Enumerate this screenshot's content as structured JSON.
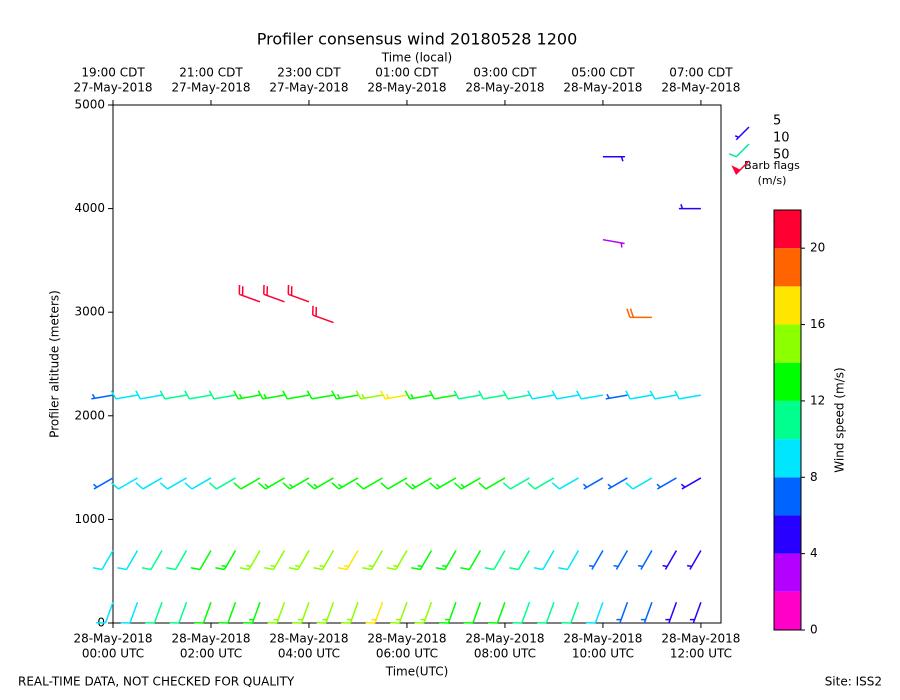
{
  "chart_data": {
    "type": "barbs",
    "title": "Profiler consensus wind 20180528 1200",
    "x2label": "Time (local)",
    "xlabel": "Time(UTC)",
    "ylabel": "Profiler altitude (meters)",
    "xlim": [
      0,
      12.41
    ],
    "ylim": [
      0,
      5000
    ],
    "yticks": [
      0,
      1000,
      2000,
      3000,
      4000,
      5000
    ],
    "xticks": [
      {
        "value": 0,
        "label": [
          "28-May-2018",
          "00:00 UTC"
        ]
      },
      {
        "value": 2,
        "label": [
          "28-May-2018",
          "02:00 UTC"
        ]
      },
      {
        "value": 4,
        "label": [
          "28-May-2018",
          "04:00 UTC"
        ]
      },
      {
        "value": 6,
        "label": [
          "28-May-2018",
          "06:00 UTC"
        ]
      },
      {
        "value": 8,
        "label": [
          "28-May-2018",
          "08:00 UTC"
        ]
      },
      {
        "value": 10,
        "label": [
          "28-May-2018",
          "10:00 UTC"
        ]
      },
      {
        "value": 12,
        "label": [
          "28-May-2018",
          "12:00 UTC"
        ]
      }
    ],
    "x2ticks": [
      {
        "value": 0,
        "label": [
          "19:00 CDT",
          "27-May-2018"
        ]
      },
      {
        "value": 2,
        "label": [
          "21:00 CDT",
          "27-May-2018"
        ]
      },
      {
        "value": 4,
        "label": [
          "23:00 CDT",
          "27-May-2018"
        ]
      },
      {
        "value": 6,
        "label": [
          "01:00 CDT",
          "28-May-2018"
        ]
      },
      {
        "value": 8,
        "label": [
          "03:00 CDT",
          "28-May-2018"
        ]
      },
      {
        "value": 10,
        "label": [
          "05:00 CDT",
          "28-May-2018"
        ]
      },
      {
        "value": 12,
        "label": [
          "07:00 CDT",
          "28-May-2018"
        ]
      }
    ],
    "profiles": [
      {
        "time": 0,
        "altitude": [
          200,
          700,
          1400,
          2200
        ],
        "speed": [
          9,
          9,
          7,
          6
        ],
        "direction": [
          200,
          210,
          240,
          260
        ]
      },
      {
        "time": 0.5,
        "altitude": [
          200,
          700,
          1400,
          2200
        ],
        "speed": [
          9,
          9,
          9,
          9
        ],
        "direction": [
          200,
          210,
          240,
          260
        ]
      },
      {
        "time": 1,
        "altitude": [
          200,
          700,
          1400,
          2200
        ],
        "speed": [
          10,
          10,
          9,
          9
        ],
        "direction": [
          200,
          210,
          240,
          260
        ]
      },
      {
        "time": 1.5,
        "altitude": [
          200,
          700,
          1400,
          2200
        ],
        "speed": [
          10,
          10,
          8,
          10
        ],
        "direction": [
          200,
          210,
          240,
          260
        ]
      },
      {
        "time": 2,
        "altitude": [
          200,
          700,
          1400,
          2200
        ],
        "speed": [
          12,
          12,
          9,
          10
        ],
        "direction": [
          200,
          210,
          240,
          260
        ]
      },
      {
        "time": 2.5,
        "altitude": [
          200,
          700,
          1400,
          2200
        ],
        "speed": [
          12,
          13,
          10,
          11
        ],
        "direction": [
          200,
          210,
          240,
          260
        ]
      },
      {
        "time": 3,
        "altitude": [
          200,
          700,
          1400,
          2200,
          3100
        ],
        "speed": [
          13,
          14,
          12,
          13,
          21
        ],
        "direction": [
          200,
          210,
          240,
          260,
          290
        ]
      },
      {
        "time": 3.5,
        "altitude": [
          200,
          700,
          1400,
          2200,
          3100
        ],
        "speed": [
          14,
          14,
          13,
          13,
          21
        ],
        "direction": [
          200,
          210,
          240,
          260,
          290
        ]
      },
      {
        "time": 4,
        "altitude": [
          200,
          700,
          1400,
          2200,
          3100
        ],
        "speed": [
          14,
          15,
          13,
          12,
          21
        ],
        "direction": [
          200,
          210,
          240,
          260,
          290
        ]
      },
      {
        "time": 4.5,
        "altitude": [
          200,
          700,
          1400,
          2200,
          2900
        ],
        "speed": [
          15,
          15,
          13,
          12,
          21
        ],
        "direction": [
          200,
          210,
          240,
          260,
          290
        ]
      },
      {
        "time": 5,
        "altitude": [
          200,
          700,
          1400,
          2200
        ],
        "speed": [
          15,
          16,
          13,
          13
        ],
        "direction": [
          200,
          210,
          240,
          260
        ]
      },
      {
        "time": 5.5,
        "altitude": [
          200,
          700,
          1400,
          2200
        ],
        "speed": [
          16,
          15,
          12,
          14
        ],
        "direction": [
          200,
          210,
          240,
          260
        ]
      },
      {
        "time": 6,
        "altitude": [
          200,
          700,
          1400,
          2200
        ],
        "speed": [
          15,
          14,
          12,
          17
        ],
        "direction": [
          200,
          210,
          240,
          260
        ]
      },
      {
        "time": 6.5,
        "altitude": [
          200,
          700,
          1400,
          2200
        ],
        "speed": [
          14,
          13,
          13,
          13
        ],
        "direction": [
          200,
          210,
          240,
          260
        ]
      },
      {
        "time": 7,
        "altitude": [
          200,
          700,
          1400,
          2200
        ],
        "speed": [
          13,
          13,
          13,
          12
        ],
        "direction": [
          200,
          210,
          240,
          260
        ]
      },
      {
        "time": 7.5,
        "altitude": [
          200,
          700,
          1400,
          2200
        ],
        "speed": [
          12,
          12,
          13,
          11
        ],
        "direction": [
          200,
          210,
          240,
          260
        ]
      },
      {
        "time": 8,
        "altitude": [
          200,
          700,
          1400,
          2200
        ],
        "speed": [
          12,
          11,
          12,
          10
        ],
        "direction": [
          200,
          210,
          240,
          260
        ]
      },
      {
        "time": 8.5,
        "altitude": [
          200,
          700,
          1400,
          2200
        ],
        "speed": [
          11,
          10,
          11,
          10
        ],
        "direction": [
          200,
          210,
          240,
          260
        ]
      },
      {
        "time": 9,
        "altitude": [
          200,
          700,
          1400,
          2200
        ],
        "speed": [
          10,
          9,
          10,
          9
        ],
        "direction": [
          200,
          210,
          240,
          260
        ]
      },
      {
        "time": 9.5,
        "altitude": [
          200,
          700,
          1400,
          2200
        ],
        "speed": [
          10,
          9,
          9,
          9
        ],
        "direction": [
          200,
          210,
          240,
          260
        ]
      },
      {
        "time": 10,
        "altitude": [
          200,
          700,
          1400,
          2200,
          3700,
          4500
        ],
        "speed": [
          8,
          7,
          7,
          8,
          3,
          5
        ],
        "direction": [
          200,
          210,
          240,
          260,
          100,
          90
        ]
      },
      {
        "time": 10.5,
        "altitude": [
          200,
          700,
          1400,
          2200
        ],
        "speed": [
          7,
          6,
          6,
          7
        ],
        "direction": [
          200,
          210,
          240,
          260
        ]
      },
      {
        "time": 11,
        "altitude": [
          200,
          700,
          1400,
          2200,
          2950
        ],
        "speed": [
          6,
          6,
          9,
          9,
          18
        ],
        "direction": [
          200,
          210,
          240,
          260,
          270
        ]
      },
      {
        "time": 11.5,
        "altitude": [
          200,
          700,
          1400,
          2200
        ],
        "speed": [
          5,
          5,
          6,
          9
        ],
        "direction": [
          200,
          210,
          240,
          260
        ]
      },
      {
        "time": 12,
        "altitude": [
          200,
          700,
          1400,
          2200,
          4000
        ],
        "speed": [
          5,
          5,
          4,
          8,
          5
        ],
        "direction": [
          200,
          210,
          240,
          260,
          270
        ]
      }
    ],
    "colorbar": {
      "label": "Wind speed (m/s)",
      "levels": [
        0,
        2,
        4,
        6,
        8,
        10,
        12,
        14,
        16,
        18,
        20,
        22
      ],
      "colors": [
        "#ff00c8",
        "#b400ff",
        "#2800ff",
        "#0064ff",
        "#00e6ff",
        "#00ff8c",
        "#00ff00",
        "#8cff00",
        "#ffe600",
        "#ff6400",
        "#ff0032"
      ],
      "ticks": [
        0,
        4,
        8,
        12,
        16,
        20
      ]
    },
    "barb_legend": {
      "title": "Barb flags",
      "unit": "(m/s)",
      "entries": [
        {
          "value": 5,
          "color": "#2800ff"
        },
        {
          "value": 10,
          "color": "#00e6aa"
        },
        {
          "value": 50,
          "color": "#ff0032"
        }
      ]
    },
    "footer_left": "REAL-TIME DATA, NOT CHECKED FOR QUALITY",
    "footer_right": "Site: ISS2"
  }
}
